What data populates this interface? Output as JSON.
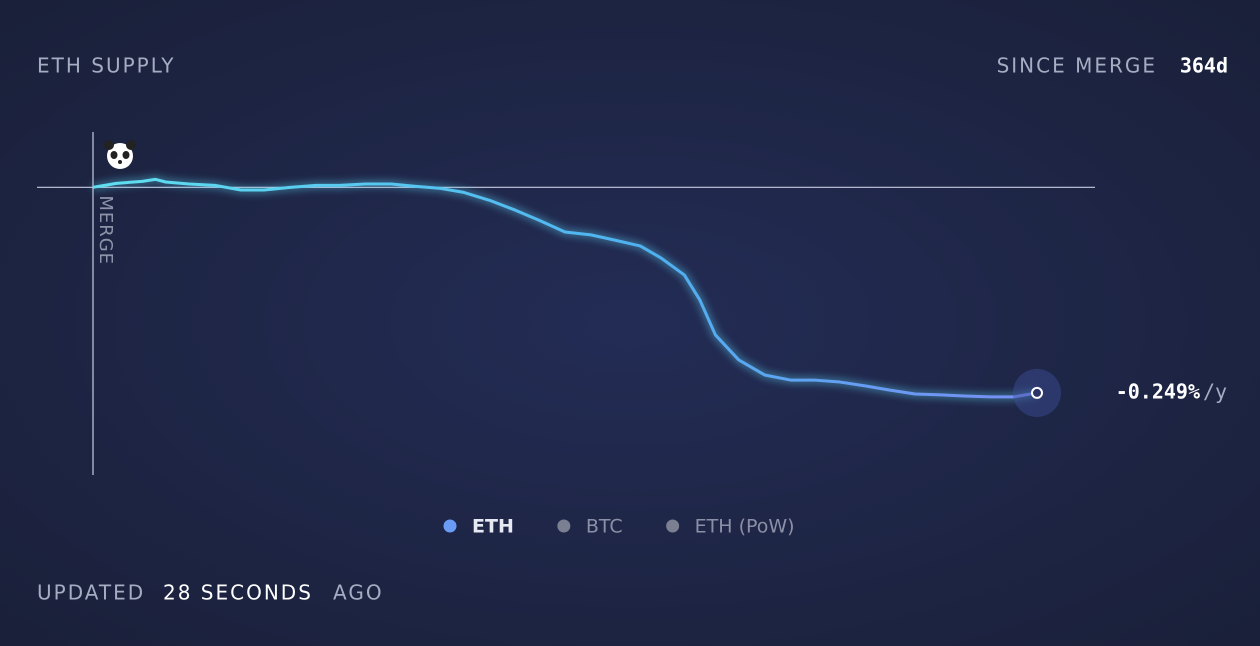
{
  "chart_data": {
    "type": "line",
    "title": "ETH SUPPLY",
    "since_label": "SINCE MERGE",
    "since_value": "364d",
    "merge_marker": {
      "label": "MERGE",
      "x": 0
    },
    "baseline": 0,
    "xlim": [
      0,
      364
    ],
    "ylim": [
      -1.3,
      0.25
    ],
    "series": [
      {
        "name": "ETH",
        "color": "#5fd3f3",
        "x": [
          0,
          9,
          19,
          24,
          28,
          37,
          47,
          57,
          66,
          76,
          86,
          95,
          105,
          115,
          124,
          134,
          143,
          153,
          163,
          172,
          182,
          192,
          201,
          211,
          219,
          228,
          234,
          240,
          249,
          259,
          269,
          278,
          288,
          298,
          307,
          317,
          327,
          336,
          346,
          355,
          364
        ],
        "values": [
          0,
          0.018,
          0.027,
          0.036,
          0.024,
          0.015,
          0.009,
          -0.012,
          -0.012,
          0,
          0.009,
          0.009,
          0.015,
          0.015,
          0.005,
          -0.005,
          -0.023,
          -0.059,
          -0.104,
          -0.149,
          -0.202,
          -0.215,
          -0.238,
          -0.265,
          -0.319,
          -0.396,
          -0.509,
          -0.667,
          -0.78,
          -0.848,
          -0.871,
          -0.871,
          -0.88,
          -0.898,
          -0.916,
          -0.934,
          -0.938,
          -0.943,
          -0.947,
          -0.947,
          -0.929
        ]
      }
    ],
    "end_label": {
      "value": "-0.249%",
      "unit": "/y"
    },
    "legend": [
      {
        "name": "ETH",
        "color": "#6b9cf5"
      },
      {
        "name": "BTC",
        "color": "#7b7f92"
      },
      {
        "name": "ETH (PoW)",
        "color": "#7b7f92"
      }
    ],
    "footer": {
      "prefix": "UPDATED",
      "time": "28 SECONDS",
      "suffix": "AGO"
    }
  }
}
